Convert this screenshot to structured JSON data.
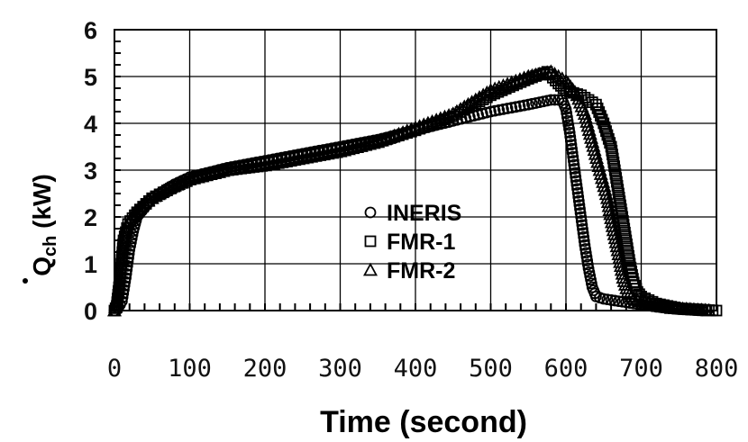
{
  "chart_data": {
    "type": "scatter",
    "xlabel": "Time (second)",
    "ylabel": {
      "main": "Q",
      "sub": "ch",
      "unit": " (kW)"
    },
    "xlim": [
      0,
      800
    ],
    "ylim": [
      0,
      6
    ],
    "xticks": [
      0,
      100,
      200,
      300,
      400,
      500,
      600,
      700,
      800
    ],
    "yticks": [
      0,
      1,
      2,
      3,
      4,
      5,
      6
    ],
    "grid": true,
    "legend_position": "center",
    "series": [
      {
        "name": "INERIS",
        "marker": "circle",
        "points": [
          [
            0,
            0
          ],
          [
            5,
            0.05
          ],
          [
            10,
            0.2
          ],
          [
            15,
            0.7
          ],
          [
            20,
            1.3
          ],
          [
            25,
            1.7
          ],
          [
            30,
            2.0
          ],
          [
            50,
            2.4
          ],
          [
            80,
            2.7
          ],
          [
            100,
            2.85
          ],
          [
            150,
            3.05
          ],
          [
            200,
            3.2
          ],
          [
            250,
            3.35
          ],
          [
            300,
            3.5
          ],
          [
            350,
            3.65
          ],
          [
            400,
            3.85
          ],
          [
            450,
            4.05
          ],
          [
            500,
            4.25
          ],
          [
            550,
            4.4
          ],
          [
            580,
            4.5
          ],
          [
            595,
            4.5
          ],
          [
            600,
            4.3
          ],
          [
            605,
            3.8
          ],
          [
            610,
            3.2
          ],
          [
            615,
            2.6
          ],
          [
            620,
            2.0
          ],
          [
            625,
            1.4
          ],
          [
            630,
            0.9
          ],
          [
            635,
            0.5
          ],
          [
            640,
            0.3
          ],
          [
            650,
            0.25
          ],
          [
            670,
            0.2
          ],
          [
            690,
            0.15
          ],
          [
            720,
            0.08
          ],
          [
            750,
            0.03
          ],
          [
            780,
            0.0
          ]
        ]
      },
      {
        "name": "FMR-1",
        "marker": "square",
        "points": [
          [
            0,
            0
          ],
          [
            3,
            0.1
          ],
          [
            6,
            0.5
          ],
          [
            9,
            1.0
          ],
          [
            12,
            1.5
          ],
          [
            18,
            1.85
          ],
          [
            30,
            2.1
          ],
          [
            50,
            2.4
          ],
          [
            80,
            2.65
          ],
          [
            100,
            2.8
          ],
          [
            150,
            3.0
          ],
          [
            200,
            3.15
          ],
          [
            250,
            3.3
          ],
          [
            300,
            3.45
          ],
          [
            350,
            3.6
          ],
          [
            400,
            3.85
          ],
          [
            450,
            4.15
          ],
          [
            500,
            4.6
          ],
          [
            550,
            4.95
          ],
          [
            575,
            5.1
          ],
          [
            590,
            4.85
          ],
          [
            600,
            4.7
          ],
          [
            620,
            4.6
          ],
          [
            640,
            4.4
          ],
          [
            650,
            4.0
          ],
          [
            660,
            3.5
          ],
          [
            665,
            3.0
          ],
          [
            670,
            2.5
          ],
          [
            675,
            2.0
          ],
          [
            680,
            1.5
          ],
          [
            685,
            1.0
          ],
          [
            690,
            0.6
          ],
          [
            695,
            0.4
          ],
          [
            700,
            0.3
          ],
          [
            720,
            0.15
          ],
          [
            750,
            0.05
          ],
          [
            780,
            0.02
          ],
          [
            800,
            0.0
          ]
        ]
      },
      {
        "name": "FMR-2",
        "marker": "triangle",
        "points": [
          [
            0,
            0
          ],
          [
            4,
            0.2
          ],
          [
            8,
            0.7
          ],
          [
            12,
            1.3
          ],
          [
            16,
            1.8
          ],
          [
            25,
            2.05
          ],
          [
            40,
            2.3
          ],
          [
            70,
            2.6
          ],
          [
            100,
            2.8
          ],
          [
            150,
            3.0
          ],
          [
            200,
            3.1
          ],
          [
            250,
            3.25
          ],
          [
            300,
            3.4
          ],
          [
            350,
            3.6
          ],
          [
            400,
            3.9
          ],
          [
            450,
            4.2
          ],
          [
            500,
            4.7
          ],
          [
            550,
            5.0
          ],
          [
            580,
            5.1
          ],
          [
            600,
            4.9
          ],
          [
            615,
            4.6
          ],
          [
            625,
            4.2
          ],
          [
            635,
            3.6
          ],
          [
            645,
            3.0
          ],
          [
            655,
            2.4
          ],
          [
            662,
            1.8
          ],
          [
            670,
            1.2
          ],
          [
            676,
            0.7
          ],
          [
            682,
            0.4
          ],
          [
            690,
            0.25
          ],
          [
            710,
            0.15
          ],
          [
            740,
            0.05
          ],
          [
            770,
            0.02
          ],
          [
            790,
            0.0
          ]
        ]
      }
    ]
  }
}
